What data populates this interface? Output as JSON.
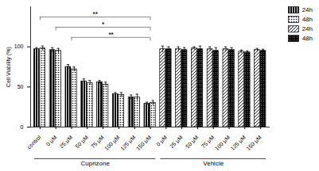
{
  "chart_data": {
    "type": "bar",
    "y_label": "Cell Viability (%)",
    "categories": [
      "control",
      "0 μM",
      "25 μM",
      "50 μM",
      "75 μM",
      "100 μM",
      "125 μM",
      "150 μM",
      "0 μM",
      "25 μM",
      "50 μM",
      "75 μM",
      "100 μM",
      "125 μM",
      "150 μM"
    ],
    "series": [
      {
        "name": "24h",
        "color": "#000000",
        "values": [
          97,
          96,
          75,
          57,
          56,
          41,
          37,
          29,
          null,
          null,
          null,
          null,
          null,
          null,
          null
        ],
        "errors": [
          2,
          3,
          3,
          3,
          2,
          2,
          3,
          2,
          null,
          null,
          null,
          null,
          null,
          null,
          null
        ]
      },
      {
        "name": "48h",
        "color": "#000000",
        "values": [
          98,
          95,
          72,
          55,
          53,
          40,
          37,
          30,
          null,
          null,
          null,
          null,
          null,
          null,
          null
        ],
        "errors": [
          3,
          3,
          3,
          3,
          3,
          3,
          4,
          3,
          null,
          null,
          null,
          null,
          null,
          null,
          null
        ]
      },
      {
        "name": "24h",
        "color": "#000000",
        "values": [
          null,
          null,
          null,
          null,
          null,
          null,
          null,
          null,
          97,
          97,
          98,
          97,
          97,
          94,
          96
        ],
        "errors": [
          null,
          null,
          null,
          null,
          null,
          null,
          null,
          null,
          4,
          3,
          2,
          3,
          3,
          2,
          2
        ]
      },
      {
        "name": "48h",
        "color": "#000000",
        "values": [
          null,
          null,
          null,
          null,
          null,
          null,
          null,
          null,
          97,
          96,
          97,
          95,
          96,
          93,
          95
        ],
        "errors": [
          null,
          null,
          null,
          null,
          null,
          null,
          null,
          null,
          3,
          3,
          4,
          4,
          3,
          2,
          2
        ]
      }
    ],
    "groups": [
      {
        "label": "Cuprizone",
        "size": 8
      },
      {
        "label": "Vehicle",
        "size": 7
      }
    ],
    "annotations": [
      {
        "text": "**",
        "from": 0,
        "to": 7
      },
      {
        "text": "*",
        "from": 1,
        "to": 7
      },
      {
        "text": "**",
        "from": 2,
        "to": 7
      }
    ],
    "ylim": [
      0,
      150
    ],
    "yticks": [
      0,
      50,
      100
    ],
    "grid": false,
    "legend": "top-right"
  }
}
